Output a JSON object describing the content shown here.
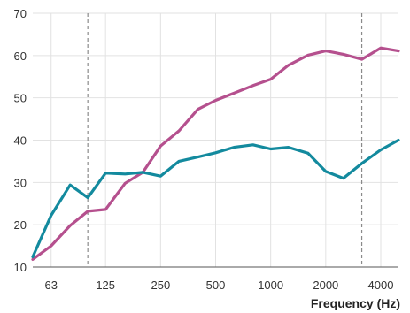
{
  "chart_data": {
    "type": "line",
    "title": "",
    "xlabel": "Frequency (Hz)",
    "ylabel": "",
    "x_scale": "log",
    "xlim": [
      50,
      5000
    ],
    "ylim": [
      10,
      70
    ],
    "grid": true,
    "legend": "none",
    "x_ticks": [
      63,
      125,
      250,
      500,
      1000,
      2000,
      4000
    ],
    "x_tick_labels": [
      "63",
      "125",
      "250",
      "500",
      "1000",
      "2000",
      "4000"
    ],
    "y_ticks": [
      10,
      20,
      30,
      40,
      50,
      60,
      70
    ],
    "y_tick_labels": [
      "10",
      "20",
      "30",
      "40",
      "50",
      "60",
      "70"
    ],
    "reference_lines_x": [
      100,
      3150
    ],
    "x": [
      50,
      63,
      80,
      100,
      125,
      160,
      200,
      250,
      315,
      400,
      500,
      630,
      800,
      1000,
      1250,
      1600,
      2000,
      2500,
      3150,
      4000,
      5000
    ],
    "series": [
      {
        "color": "#b5508e",
        "values": [
          11.8,
          15.0,
          19.8,
          23.2,
          23.6,
          29.8,
          32.4,
          38.6,
          42.2,
          47.3,
          49.4,
          51.1,
          52.9,
          54.4,
          57.7,
          60.1,
          61.1,
          60.3,
          59.1,
          61.8,
          61.1
        ]
      },
      {
        "color": "#138a9e",
        "values": [
          12.4,
          22.2,
          29.4,
          26.4,
          32.2,
          32.0,
          32.4,
          31.5,
          35.0,
          36.0,
          37.0,
          38.3,
          38.9,
          37.9,
          38.3,
          36.9,
          32.6,
          31.0,
          34.5,
          37.7,
          40.0
        ]
      }
    ]
  }
}
